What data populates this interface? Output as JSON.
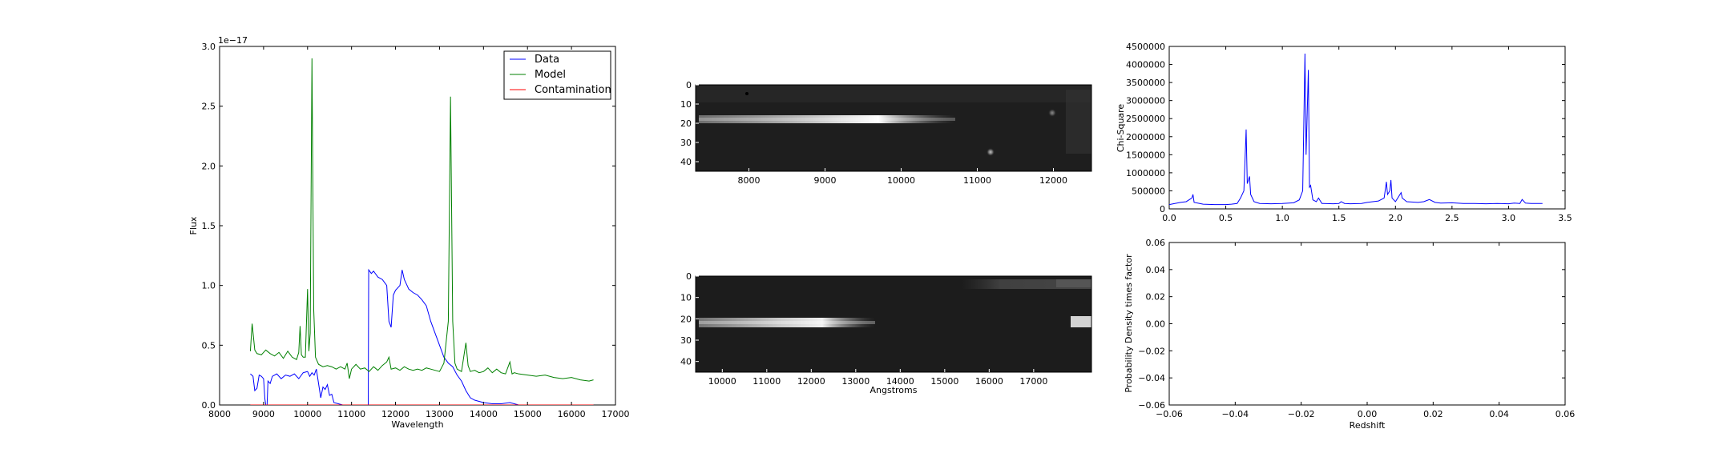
{
  "chart_data": [
    {
      "type": "line",
      "xlabel": "Wavelength",
      "ylabel": "Flux",
      "offset_text": "1e−17",
      "xlim": [
        8000,
        17000
      ],
      "ylim": [
        0,
        3.0
      ],
      "xticks": [
        "8000",
        "9000",
        "10000",
        "11000",
        "12000",
        "13000",
        "14000",
        "15000",
        "16000",
        "17000"
      ],
      "yticks": [
        "0.0",
        "0.5",
        "1.0",
        "1.5",
        "2.0",
        "2.5",
        "3.0"
      ],
      "legend_position": "top-right",
      "grid": false,
      "series": [
        {
          "name": "Data",
          "color": "#0000ff",
          "points": [
            [
              8700,
              0.26
            ],
            [
              8760,
              0.24
            ],
            [
              8800,
              0.12
            ],
            [
              8850,
              0.14
            ],
            [
              8900,
              0.25
            ],
            [
              8950,
              0.24
            ],
            [
              9000,
              0.22
            ],
            [
              9030,
              0.05
            ],
            [
              9050,
              0.0
            ],
            [
              9080,
              0.0
            ],
            [
              9100,
              0.2
            ],
            [
              9150,
              0.18
            ],
            [
              9200,
              0.24
            ],
            [
              9300,
              0.26
            ],
            [
              9400,
              0.22
            ],
            [
              9500,
              0.25
            ],
            [
              9600,
              0.24
            ],
            [
              9700,
              0.26
            ],
            [
              9800,
              0.22
            ],
            [
              9900,
              0.27
            ],
            [
              10000,
              0.28
            ],
            [
              10050,
              0.24
            ],
            [
              10100,
              0.27
            ],
            [
              10150,
              0.25
            ],
            [
              10200,
              0.3
            ],
            [
              10250,
              0.18
            ],
            [
              10300,
              0.06
            ],
            [
              10350,
              0.15
            ],
            [
              10400,
              0.13
            ],
            [
              10450,
              0.17
            ],
            [
              10500,
              0.08
            ],
            [
              10550,
              0.09
            ],
            [
              10600,
              0.02
            ],
            [
              10700,
              0.01
            ],
            [
              10800,
              0.0
            ],
            [
              10900,
              0.0
            ],
            [
              11000,
              0.0
            ],
            [
              11100,
              0.0
            ],
            [
              11200,
              0.0
            ],
            [
              11300,
              0.0
            ],
            [
              11380,
              0.0
            ],
            [
              11390,
              1.13
            ],
            [
              11450,
              1.1
            ],
            [
              11500,
              1.12
            ],
            [
              11600,
              1.07
            ],
            [
              11700,
              1.05
            ],
            [
              11800,
              1.0
            ],
            [
              11850,
              0.7
            ],
            [
              11900,
              0.65
            ],
            [
              11950,
              0.92
            ],
            [
              12000,
              0.96
            ],
            [
              12100,
              1.0
            ],
            [
              12150,
              1.13
            ],
            [
              12200,
              1.05
            ],
            [
              12300,
              0.97
            ],
            [
              12400,
              0.94
            ],
            [
              12500,
              0.92
            ],
            [
              12600,
              0.88
            ],
            [
              12700,
              0.83
            ],
            [
              12800,
              0.7
            ],
            [
              12900,
              0.6
            ],
            [
              13000,
              0.5
            ],
            [
              13100,
              0.4
            ],
            [
              13200,
              0.35
            ],
            [
              13300,
              0.32
            ],
            [
              13400,
              0.25
            ],
            [
              13500,
              0.2
            ],
            [
              13600,
              0.12
            ],
            [
              13700,
              0.06
            ],
            [
              13800,
              0.04
            ],
            [
              13900,
              0.03
            ],
            [
              14000,
              0.02
            ],
            [
              14200,
              0.01
            ],
            [
              14400,
              0.01
            ],
            [
              14600,
              0.02
            ],
            [
              14800,
              0.0
            ],
            [
              15000,
              0.0
            ],
            [
              15500,
              0.0
            ],
            [
              16000,
              0.0
            ],
            [
              16500,
              0.0
            ]
          ]
        },
        {
          "name": "Model",
          "color": "#008000",
          "points": [
            [
              8700,
              0.45
            ],
            [
              8740,
              0.68
            ],
            [
              8800,
              0.46
            ],
            [
              8850,
              0.43
            ],
            [
              8950,
              0.42
            ],
            [
              9050,
              0.46
            ],
            [
              9150,
              0.43
            ],
            [
              9250,
              0.41
            ],
            [
              9350,
              0.44
            ],
            [
              9450,
              0.39
            ],
            [
              9550,
              0.45
            ],
            [
              9650,
              0.4
            ],
            [
              9750,
              0.38
            ],
            [
              9800,
              0.44
            ],
            [
              9830,
              0.66
            ],
            [
              9860,
              0.42
            ],
            [
              9900,
              0.4
            ],
            [
              9950,
              0.4
            ],
            [
              10000,
              0.97
            ],
            [
              10030,
              0.45
            ],
            [
              10060,
              0.6
            ],
            [
              10100,
              2.9
            ],
            [
              10140,
              0.8
            ],
            [
              10180,
              0.4
            ],
            [
              10250,
              0.34
            ],
            [
              10350,
              0.32
            ],
            [
              10450,
              0.33
            ],
            [
              10550,
              0.32
            ],
            [
              10650,
              0.3
            ],
            [
              10750,
              0.32
            ],
            [
              10850,
              0.3
            ],
            [
              10900,
              0.35
            ],
            [
              10950,
              0.22
            ],
            [
              11000,
              0.3
            ],
            [
              11100,
              0.34
            ],
            [
              11200,
              0.3
            ],
            [
              11300,
              0.31
            ],
            [
              11400,
              0.28
            ],
            [
              11500,
              0.32
            ],
            [
              11600,
              0.29
            ],
            [
              11700,
              0.33
            ],
            [
              11800,
              0.36
            ],
            [
              11850,
              0.4
            ],
            [
              11900,
              0.3
            ],
            [
              12000,
              0.31
            ],
            [
              12100,
              0.29
            ],
            [
              12200,
              0.32
            ],
            [
              12300,
              0.3
            ],
            [
              12400,
              0.29
            ],
            [
              12500,
              0.3
            ],
            [
              12600,
              0.29
            ],
            [
              12700,
              0.31
            ],
            [
              12800,
              0.3
            ],
            [
              12900,
              0.29
            ],
            [
              13000,
              0.28
            ],
            [
              13100,
              0.35
            ],
            [
              13200,
              0.7
            ],
            [
              13250,
              2.58
            ],
            [
              13300,
              0.7
            ],
            [
              13350,
              0.35
            ],
            [
              13400,
              0.3
            ],
            [
              13500,
              0.28
            ],
            [
              13600,
              0.52
            ],
            [
              13650,
              0.33
            ],
            [
              13700,
              0.28
            ],
            [
              13800,
              0.29
            ],
            [
              13900,
              0.27
            ],
            [
              14000,
              0.28
            ],
            [
              14100,
              0.31
            ],
            [
              14200,
              0.27
            ],
            [
              14300,
              0.3
            ],
            [
              14400,
              0.27
            ],
            [
              14500,
              0.26
            ],
            [
              14600,
              0.36
            ],
            [
              14650,
              0.26
            ],
            [
              14700,
              0.27
            ],
            [
              14800,
              0.26
            ],
            [
              15000,
              0.25
            ],
            [
              15200,
              0.24
            ],
            [
              15400,
              0.25
            ],
            [
              15600,
              0.23
            ],
            [
              15800,
              0.22
            ],
            [
              16000,
              0.23
            ],
            [
              16200,
              0.21
            ],
            [
              16400,
              0.2
            ],
            [
              16500,
              0.21
            ]
          ]
        },
        {
          "name": "Contamination",
          "color": "#ff0000",
          "points": [
            [
              8700,
              0.0
            ],
            [
              16500,
              0.0
            ]
          ]
        }
      ]
    },
    {
      "type": "heatmap",
      "xlim": [
        7300,
        12500
      ],
      "ylim": [
        0,
        45
      ],
      "xticks": [
        "8000",
        "9000",
        "10000",
        "11000",
        "12000"
      ],
      "yticks": [
        "0",
        "10",
        "20",
        "30",
        "40"
      ],
      "colormap": "gray"
    },
    {
      "type": "heatmap",
      "xlabel": "Angstroms",
      "xlim": [
        9400,
        18300
      ],
      "ylim": [
        0,
        45
      ],
      "xticks": [
        "10000",
        "11000",
        "12000",
        "13000",
        "14000",
        "15000",
        "16000",
        "17000"
      ],
      "yticks": [
        "0",
        "10",
        "20",
        "30",
        "40"
      ],
      "colormap": "gray"
    },
    {
      "type": "line",
      "ylabel": "Chi-Square",
      "xlim": [
        0.0,
        3.5
      ],
      "ylim": [
        0,
        4500000
      ],
      "xticks": [
        "0.0",
        "0.5",
        "1.0",
        "1.5",
        "2.0",
        "2.5",
        "3.0",
        "3.5"
      ],
      "yticks": [
        "0",
        "500000",
        "1000000",
        "1500000",
        "2000000",
        "2500000",
        "3000000",
        "3500000",
        "4000000",
        "4500000"
      ],
      "grid": false,
      "series": [
        {
          "color": "#0000ff",
          "points": [
            [
              0.0,
              120000
            ],
            [
              0.05,
              150000
            ],
            [
              0.1,
              180000
            ],
            [
              0.15,
              200000
            ],
            [
              0.2,
              300000
            ],
            [
              0.21,
              400000
            ],
            [
              0.22,
              180000
            ],
            [
              0.3,
              130000
            ],
            [
              0.4,
              120000
            ],
            [
              0.5,
              120000
            ],
            [
              0.55,
              130000
            ],
            [
              0.6,
              150000
            ],
            [
              0.63,
              300000
            ],
            [
              0.66,
              500000
            ],
            [
              0.68,
              2200000
            ],
            [
              0.69,
              700000
            ],
            [
              0.7,
              800000
            ],
            [
              0.71,
              900000
            ],
            [
              0.72,
              400000
            ],
            [
              0.75,
              200000
            ],
            [
              0.8,
              150000
            ],
            [
              0.9,
              140000
            ],
            [
              1.0,
              150000
            ],
            [
              1.1,
              170000
            ],
            [
              1.15,
              250000
            ],
            [
              1.18,
              500000
            ],
            [
              1.2,
              4300000
            ],
            [
              1.21,
              1500000
            ],
            [
              1.23,
              3850000
            ],
            [
              1.24,
              600000
            ],
            [
              1.25,
              650000
            ],
            [
              1.27,
              250000
            ],
            [
              1.3,
              200000
            ],
            [
              1.32,
              300000
            ],
            [
              1.35,
              150000
            ],
            [
              1.45,
              140000
            ],
            [
              1.5,
              150000
            ],
            [
              1.52,
              200000
            ],
            [
              1.55,
              150000
            ],
            [
              1.6,
              140000
            ],
            [
              1.7,
              150000
            ],
            [
              1.75,
              180000
            ],
            [
              1.8,
              200000
            ],
            [
              1.85,
              220000
            ],
            [
              1.9,
              300000
            ],
            [
              1.92,
              750000
            ],
            [
              1.93,
              400000
            ],
            [
              1.95,
              500000
            ],
            [
              1.96,
              800000
            ],
            [
              1.97,
              300000
            ],
            [
              2.0,
              200000
            ],
            [
              2.05,
              450000
            ],
            [
              2.06,
              300000
            ],
            [
              2.1,
              200000
            ],
            [
              2.2,
              180000
            ],
            [
              2.25,
              200000
            ],
            [
              2.3,
              260000
            ],
            [
              2.35,
              180000
            ],
            [
              2.4,
              160000
            ],
            [
              2.5,
              170000
            ],
            [
              2.6,
              150000
            ],
            [
              2.7,
              150000
            ],
            [
              2.8,
              140000
            ],
            [
              2.9,
              150000
            ],
            [
              3.0,
              140000
            ],
            [
              3.05,
              160000
            ],
            [
              3.1,
              150000
            ],
            [
              3.12,
              260000
            ],
            [
              3.15,
              160000
            ],
            [
              3.2,
              150000
            ],
            [
              3.3,
              150000
            ]
          ]
        }
      ]
    },
    {
      "type": "line",
      "xlabel": "Redshift",
      "ylabel": "Probability Density times factor",
      "xlim": [
        -0.06,
        0.06
      ],
      "ylim": [
        -0.06,
        0.06
      ],
      "xticks": [
        "−0.06",
        "−0.04",
        "−0.02",
        "0.00",
        "0.02",
        "0.04",
        "0.06"
      ],
      "yticks": [
        "−0.06",
        "−0.04",
        "−0.02",
        "0.00",
        "0.02",
        "0.04",
        "0.06"
      ],
      "grid": false,
      "series": []
    }
  ]
}
